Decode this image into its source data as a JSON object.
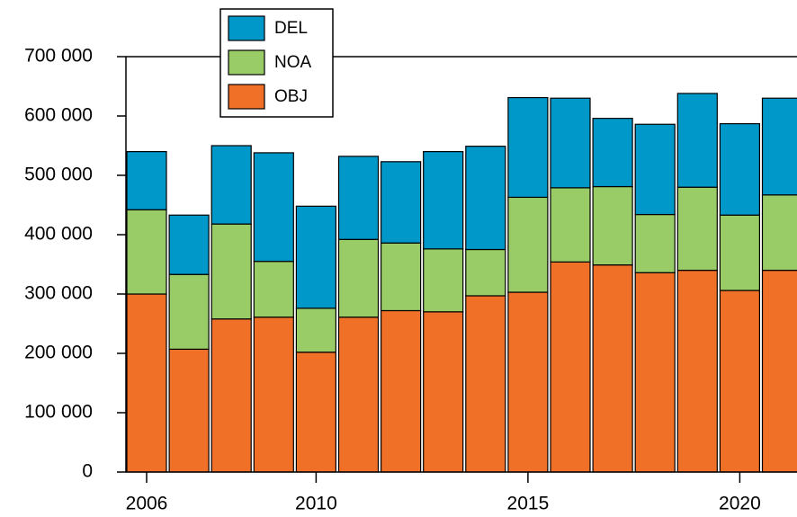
{
  "chart_data": {
    "type": "stacked-bar",
    "categories": [
      "2006",
      null,
      null,
      null,
      "2010",
      null,
      null,
      null,
      null,
      "2015",
      null,
      null,
      null,
      null,
      "2020",
      null
    ],
    "series": [
      {
        "name": "OBJ",
        "color": "#f07028",
        "values": [
          300000,
          207000,
          258000,
          261000,
          202000,
          261000,
          272000,
          270000,
          297000,
          303000,
          354000,
          349000,
          336000,
          340000,
          306000,
          340000
        ]
      },
      {
        "name": "NOA",
        "color": "#99cc66",
        "values": [
          142000,
          126000,
          160000,
          94000,
          74000,
          131000,
          114000,
          106000,
          78000,
          160000,
          125000,
          132000,
          98000,
          140000,
          127000,
          127000
        ]
      },
      {
        "name": "DEL",
        "color": "#0097c9",
        "values": [
          98000,
          100000,
          132000,
          183000,
          172000,
          140000,
          137000,
          164000,
          174000,
          168000,
          151000,
          115000,
          152000,
          158000,
          154000,
          163000
        ]
      }
    ],
    "ylim": [
      0,
      700000
    ],
    "yticks": [
      0,
      {
        "value": 100000,
        "label": "100 000"
      },
      {
        "value": 200000,
        "label": "200 000"
      },
      {
        "value": 300000,
        "label": "300 000"
      },
      {
        "value": 400000,
        "label": "400 000"
      },
      {
        "value": 500000,
        "label": "500 000"
      },
      {
        "value": 600000,
        "label": "600 000"
      },
      {
        "value": 700000,
        "label": "700 000"
      }
    ],
    "legend": "top-left"
  }
}
